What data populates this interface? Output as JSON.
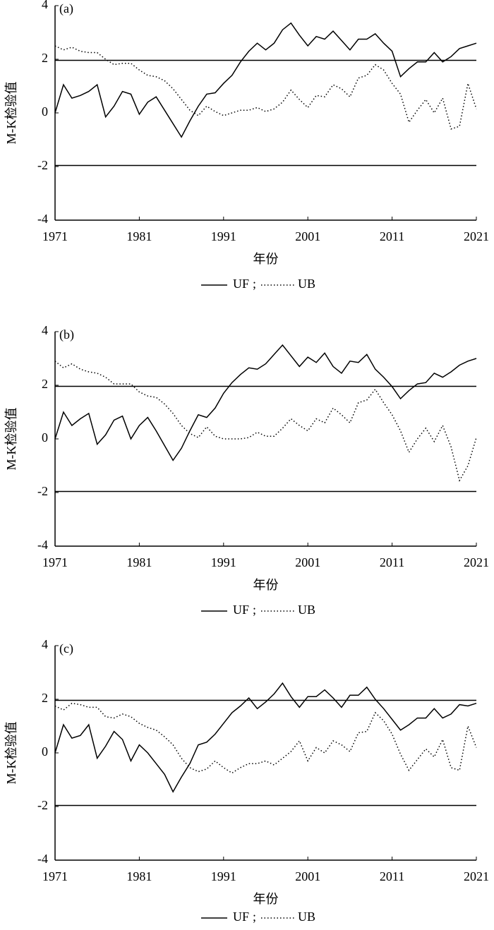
{
  "chart_data": [
    {
      "type": "line",
      "panel_label": "(a)",
      "y_label": "M-K检验值",
      "x_label": "年份",
      "legend_separator": ";",
      "x": [
        1971,
        1972,
        1973,
        1974,
        1975,
        1976,
        1977,
        1978,
        1979,
        1980,
        1981,
        1982,
        1983,
        1984,
        1985,
        1986,
        1987,
        1988,
        1989,
        1990,
        1991,
        1992,
        1993,
        1994,
        1995,
        1996,
        1997,
        1998,
        1999,
        2000,
        2001,
        2002,
        2003,
        2004,
        2005,
        2006,
        2007,
        2008,
        2009,
        2010,
        2011,
        2012,
        2013,
        2014,
        2015,
        2016,
        2017,
        2018,
        2019,
        2020,
        2021
      ],
      "series": [
        {
          "name": "UF",
          "color": "#000000",
          "dash": "solid",
          "values": [
            0,
            1.05,
            0.55,
            0.65,
            0.8,
            1.05,
            -0.15,
            0.25,
            0.8,
            0.7,
            -0.05,
            0.4,
            0.6,
            0.1,
            -0.4,
            -0.9,
            -0.3,
            0.25,
            0.7,
            0.75,
            1.1,
            1.4,
            1.9,
            2.3,
            2.6,
            2.35,
            2.6,
            3.1,
            3.35,
            2.9,
            2.5,
            2.85,
            2.75,
            3.05,
            2.7,
            2.35,
            2.75,
            2.75,
            2.95,
            2.6,
            2.3,
            1.35,
            1.65,
            1.9,
            1.9,
            2.25,
            1.9,
            2.1,
            2.4,
            2.5,
            2.6
          ]
        },
        {
          "name": "UB",
          "color": "#000000",
          "dash": "dotted",
          "values": [
            2.5,
            2.35,
            2.45,
            2.3,
            2.25,
            2.25,
            2.0,
            1.8,
            1.85,
            1.85,
            1.6,
            1.4,
            1.35,
            1.2,
            0.9,
            0.5,
            0.1,
            -0.1,
            0.25,
            0.05,
            -0.1,
            0.0,
            0.1,
            0.1,
            0.2,
            0.05,
            0.15,
            0.4,
            0.85,
            0.5,
            0.2,
            0.65,
            0.6,
            1.05,
            0.9,
            0.6,
            1.3,
            1.4,
            1.8,
            1.6,
            1.1,
            0.7,
            -0.35,
            0.1,
            0.5,
            0.0,
            0.55,
            -0.6,
            -0.5,
            1.1,
            0.15
          ]
        }
      ],
      "hlines": [
        1.96,
        -1.96
      ],
      "xlim": [
        1971,
        2021
      ],
      "xticks": [
        1971,
        1981,
        1991,
        2001,
        2011,
        2021
      ],
      "ylim": [
        -4,
        4
      ],
      "yticks": [
        -4,
        -2,
        0,
        2,
        4
      ]
    },
    {
      "type": "line",
      "panel_label": "(b)",
      "y_label": "M-K检验值",
      "x_label": "年份",
      "legend_separator": ";",
      "x": [
        1971,
        1972,
        1973,
        1974,
        1975,
        1976,
        1977,
        1978,
        1979,
        1980,
        1981,
        1982,
        1983,
        1984,
        1985,
        1986,
        1987,
        1988,
        1989,
        1990,
        1991,
        1992,
        1993,
        1994,
        1995,
        1996,
        1997,
        1998,
        1999,
        2000,
        2001,
        2002,
        2003,
        2004,
        2005,
        2006,
        2007,
        2008,
        2009,
        2010,
        2011,
        2012,
        2013,
        2014,
        2015,
        2016,
        2017,
        2018,
        2019,
        2020,
        2021
      ],
      "series": [
        {
          "name": "UF",
          "color": "#000000",
          "dash": "solid",
          "values": [
            0,
            1.0,
            0.5,
            0.75,
            0.95,
            -0.2,
            0.15,
            0.7,
            0.85,
            0.0,
            0.5,
            0.8,
            0.3,
            -0.25,
            -0.8,
            -0.35,
            0.3,
            0.9,
            0.8,
            1.15,
            1.7,
            2.1,
            2.4,
            2.65,
            2.6,
            2.8,
            3.15,
            3.5,
            3.1,
            2.7,
            3.05,
            2.85,
            3.2,
            2.7,
            2.45,
            2.9,
            2.85,
            3.15,
            2.6,
            2.3,
            1.95,
            1.5,
            1.8,
            2.05,
            2.1,
            2.45,
            2.3,
            2.5,
            2.75,
            2.9,
            3.0
          ]
        },
        {
          "name": "UB",
          "color": "#000000",
          "dash": "dotted",
          "values": [
            2.9,
            2.65,
            2.8,
            2.6,
            2.5,
            2.45,
            2.3,
            2.05,
            2.05,
            2.05,
            1.75,
            1.6,
            1.55,
            1.3,
            0.95,
            0.5,
            0.2,
            0.05,
            0.45,
            0.1,
            0.0,
            0.0,
            0.0,
            0.05,
            0.25,
            0.1,
            0.1,
            0.4,
            0.75,
            0.5,
            0.3,
            0.75,
            0.6,
            1.15,
            0.9,
            0.6,
            1.35,
            1.45,
            1.85,
            1.35,
            0.9,
            0.3,
            -0.5,
            0.0,
            0.4,
            -0.1,
            0.5,
            -0.3,
            -1.55,
            -1.0,
            0.05
          ]
        }
      ],
      "hlines": [
        1.96,
        -1.96
      ],
      "xlim": [
        1971,
        2021
      ],
      "xticks": [
        1971,
        1981,
        1991,
        2001,
        2011,
        2021
      ],
      "ylim": [
        -4,
        4
      ],
      "yticks": [
        -4,
        -2,
        0,
        2,
        4
      ]
    },
    {
      "type": "line",
      "panel_label": "(c)",
      "y_label": "M-K检验值",
      "x_label": "年份",
      "legend_separator": ";",
      "x": [
        1971,
        1972,
        1973,
        1974,
        1975,
        1976,
        1977,
        1978,
        1979,
        1980,
        1981,
        1982,
        1983,
        1984,
        1985,
        1986,
        1987,
        1988,
        1989,
        1990,
        1991,
        1992,
        1993,
        1994,
        1995,
        1996,
        1997,
        1998,
        1999,
        2000,
        2001,
        2002,
        2003,
        2004,
        2005,
        2006,
        2007,
        2008,
        2009,
        2010,
        2011,
        2012,
        2013,
        2014,
        2015,
        2016,
        2017,
        2018,
        2019,
        2020,
        2021
      ],
      "series": [
        {
          "name": "UF",
          "color": "#000000",
          "dash": "solid",
          "values": [
            0,
            1.05,
            0.55,
            0.65,
            1.05,
            -0.2,
            0.25,
            0.8,
            0.5,
            -0.3,
            0.3,
            0.0,
            -0.4,
            -0.8,
            -1.45,
            -0.9,
            -0.4,
            0.3,
            0.4,
            0.7,
            1.1,
            1.5,
            1.75,
            2.05,
            1.65,
            1.9,
            2.2,
            2.6,
            2.1,
            1.7,
            2.1,
            2.1,
            2.35,
            2.05,
            1.7,
            2.15,
            2.15,
            2.45,
            2.0,
            1.65,
            1.25,
            0.85,
            1.05,
            1.3,
            1.3,
            1.65,
            1.3,
            1.45,
            1.8,
            1.75,
            1.85
          ]
        },
        {
          "name": "UB",
          "color": "#000000",
          "dash": "dotted",
          "values": [
            1.75,
            1.6,
            1.85,
            1.8,
            1.7,
            1.7,
            1.35,
            1.3,
            1.45,
            1.35,
            1.1,
            0.95,
            0.85,
            0.6,
            0.3,
            -0.2,
            -0.55,
            -0.7,
            -0.6,
            -0.3,
            -0.55,
            -0.75,
            -0.55,
            -0.4,
            -0.4,
            -0.3,
            -0.45,
            -0.2,
            0.05,
            0.45,
            -0.3,
            0.2,
            0.0,
            0.45,
            0.3,
            0.05,
            0.75,
            0.8,
            1.5,
            1.2,
            0.7,
            -0.05,
            -0.65,
            -0.25,
            0.15,
            -0.15,
            0.5,
            -0.55,
            -0.65,
            1.0,
            0.2
          ]
        }
      ],
      "hlines": [
        1.96,
        -1.96
      ],
      "xlim": [
        1971,
        2021
      ],
      "xticks": [
        1971,
        1981,
        1991,
        2001,
        2011,
        2021
      ],
      "ylim": [
        -4,
        4
      ],
      "yticks": [
        -4,
        -2,
        0,
        2,
        4
      ]
    }
  ]
}
